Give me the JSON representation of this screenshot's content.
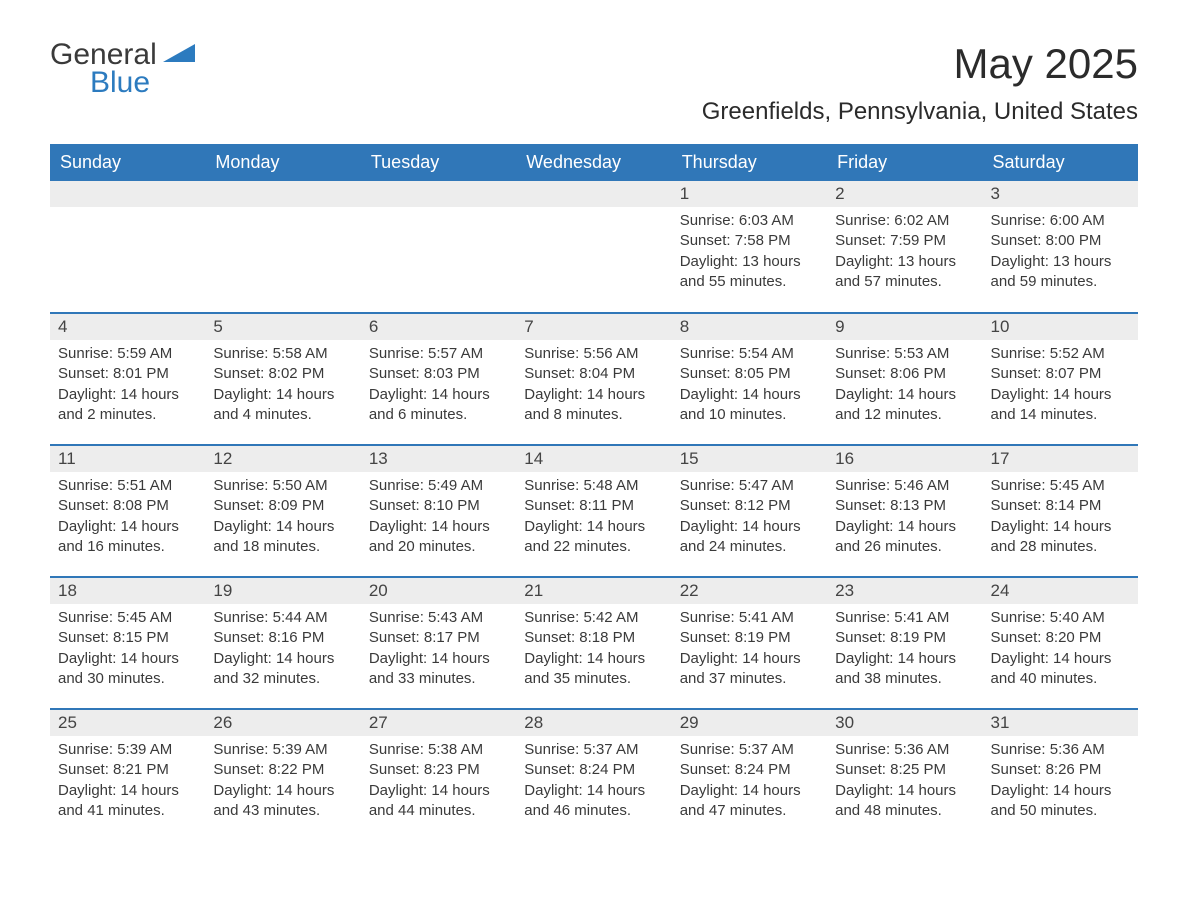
{
  "logo": {
    "word1": "General",
    "word2": "Blue",
    "text_color": "#3a3a3a",
    "accent_color": "#2c7bbf"
  },
  "header": {
    "month_title": "May 2025",
    "location": "Greenfields, Pennsylvania, United States"
  },
  "colors": {
    "header_bg": "#3077b8",
    "header_text": "#ffffff",
    "daynum_bg": "#ededed",
    "row_divider": "#3077b8",
    "body_text": "#3a3a3a",
    "background": "#ffffff"
  },
  "calendar": {
    "day_headers": [
      "Sunday",
      "Monday",
      "Tuesday",
      "Wednesday",
      "Thursday",
      "Friday",
      "Saturday"
    ],
    "weeks": [
      [
        null,
        null,
        null,
        null,
        {
          "n": "1",
          "sunrise": "Sunrise: 6:03 AM",
          "sunset": "Sunset: 7:58 PM",
          "daylight": "Daylight: 13 hours and 55 minutes."
        },
        {
          "n": "2",
          "sunrise": "Sunrise: 6:02 AM",
          "sunset": "Sunset: 7:59 PM",
          "daylight": "Daylight: 13 hours and 57 minutes."
        },
        {
          "n": "3",
          "sunrise": "Sunrise: 6:00 AM",
          "sunset": "Sunset: 8:00 PM",
          "daylight": "Daylight: 13 hours and 59 minutes."
        }
      ],
      [
        {
          "n": "4",
          "sunrise": "Sunrise: 5:59 AM",
          "sunset": "Sunset: 8:01 PM",
          "daylight": "Daylight: 14 hours and 2 minutes."
        },
        {
          "n": "5",
          "sunrise": "Sunrise: 5:58 AM",
          "sunset": "Sunset: 8:02 PM",
          "daylight": "Daylight: 14 hours and 4 minutes."
        },
        {
          "n": "6",
          "sunrise": "Sunrise: 5:57 AM",
          "sunset": "Sunset: 8:03 PM",
          "daylight": "Daylight: 14 hours and 6 minutes."
        },
        {
          "n": "7",
          "sunrise": "Sunrise: 5:56 AM",
          "sunset": "Sunset: 8:04 PM",
          "daylight": "Daylight: 14 hours and 8 minutes."
        },
        {
          "n": "8",
          "sunrise": "Sunrise: 5:54 AM",
          "sunset": "Sunset: 8:05 PM",
          "daylight": "Daylight: 14 hours and 10 minutes."
        },
        {
          "n": "9",
          "sunrise": "Sunrise: 5:53 AM",
          "sunset": "Sunset: 8:06 PM",
          "daylight": "Daylight: 14 hours and 12 minutes."
        },
        {
          "n": "10",
          "sunrise": "Sunrise: 5:52 AM",
          "sunset": "Sunset: 8:07 PM",
          "daylight": "Daylight: 14 hours and 14 minutes."
        }
      ],
      [
        {
          "n": "11",
          "sunrise": "Sunrise: 5:51 AM",
          "sunset": "Sunset: 8:08 PM",
          "daylight": "Daylight: 14 hours and 16 minutes."
        },
        {
          "n": "12",
          "sunrise": "Sunrise: 5:50 AM",
          "sunset": "Sunset: 8:09 PM",
          "daylight": "Daylight: 14 hours and 18 minutes."
        },
        {
          "n": "13",
          "sunrise": "Sunrise: 5:49 AM",
          "sunset": "Sunset: 8:10 PM",
          "daylight": "Daylight: 14 hours and 20 minutes."
        },
        {
          "n": "14",
          "sunrise": "Sunrise: 5:48 AM",
          "sunset": "Sunset: 8:11 PM",
          "daylight": "Daylight: 14 hours and 22 minutes."
        },
        {
          "n": "15",
          "sunrise": "Sunrise: 5:47 AM",
          "sunset": "Sunset: 8:12 PM",
          "daylight": "Daylight: 14 hours and 24 minutes."
        },
        {
          "n": "16",
          "sunrise": "Sunrise: 5:46 AM",
          "sunset": "Sunset: 8:13 PM",
          "daylight": "Daylight: 14 hours and 26 minutes."
        },
        {
          "n": "17",
          "sunrise": "Sunrise: 5:45 AM",
          "sunset": "Sunset: 8:14 PM",
          "daylight": "Daylight: 14 hours and 28 minutes."
        }
      ],
      [
        {
          "n": "18",
          "sunrise": "Sunrise: 5:45 AM",
          "sunset": "Sunset: 8:15 PM",
          "daylight": "Daylight: 14 hours and 30 minutes."
        },
        {
          "n": "19",
          "sunrise": "Sunrise: 5:44 AM",
          "sunset": "Sunset: 8:16 PM",
          "daylight": "Daylight: 14 hours and 32 minutes."
        },
        {
          "n": "20",
          "sunrise": "Sunrise: 5:43 AM",
          "sunset": "Sunset: 8:17 PM",
          "daylight": "Daylight: 14 hours and 33 minutes."
        },
        {
          "n": "21",
          "sunrise": "Sunrise: 5:42 AM",
          "sunset": "Sunset: 8:18 PM",
          "daylight": "Daylight: 14 hours and 35 minutes."
        },
        {
          "n": "22",
          "sunrise": "Sunrise: 5:41 AM",
          "sunset": "Sunset: 8:19 PM",
          "daylight": "Daylight: 14 hours and 37 minutes."
        },
        {
          "n": "23",
          "sunrise": "Sunrise: 5:41 AM",
          "sunset": "Sunset: 8:19 PM",
          "daylight": "Daylight: 14 hours and 38 minutes."
        },
        {
          "n": "24",
          "sunrise": "Sunrise: 5:40 AM",
          "sunset": "Sunset: 8:20 PM",
          "daylight": "Daylight: 14 hours and 40 minutes."
        }
      ],
      [
        {
          "n": "25",
          "sunrise": "Sunrise: 5:39 AM",
          "sunset": "Sunset: 8:21 PM",
          "daylight": "Daylight: 14 hours and 41 minutes."
        },
        {
          "n": "26",
          "sunrise": "Sunrise: 5:39 AM",
          "sunset": "Sunset: 8:22 PM",
          "daylight": "Daylight: 14 hours and 43 minutes."
        },
        {
          "n": "27",
          "sunrise": "Sunrise: 5:38 AM",
          "sunset": "Sunset: 8:23 PM",
          "daylight": "Daylight: 14 hours and 44 minutes."
        },
        {
          "n": "28",
          "sunrise": "Sunrise: 5:37 AM",
          "sunset": "Sunset: 8:24 PM",
          "daylight": "Daylight: 14 hours and 46 minutes."
        },
        {
          "n": "29",
          "sunrise": "Sunrise: 5:37 AM",
          "sunset": "Sunset: 8:24 PM",
          "daylight": "Daylight: 14 hours and 47 minutes."
        },
        {
          "n": "30",
          "sunrise": "Sunrise: 5:36 AM",
          "sunset": "Sunset: 8:25 PM",
          "daylight": "Daylight: 14 hours and 48 minutes."
        },
        {
          "n": "31",
          "sunrise": "Sunrise: 5:36 AM",
          "sunset": "Sunset: 8:26 PM",
          "daylight": "Daylight: 14 hours and 50 minutes."
        }
      ]
    ]
  }
}
